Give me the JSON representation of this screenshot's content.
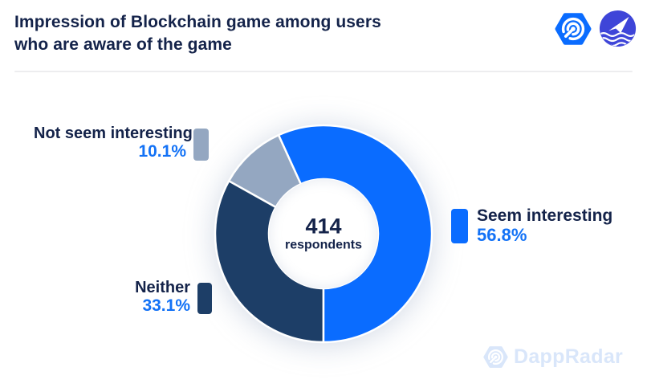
{
  "header": {
    "title_line1": "Impression of Blockchain game among users",
    "title_line2": "who are aware of the game"
  },
  "icons": {
    "header_logo_primary": "dappradar-hexagon-radar",
    "header_logo_secondary": "paper-plane-over-waves",
    "watermark_logo": "dappradar-hexagon-radar"
  },
  "colors": {
    "background": "#FFFFFF",
    "title_navy": "#14234A",
    "chart_blue": "#0A6CFF",
    "chart_navy": "#1D3E67",
    "chart_gray_blue": "#94A7C1",
    "percent_blue": "#1372F6",
    "divider_gray": "#EDEDEF",
    "watermark_blue": "#D9E6FA",
    "logo_indigo": "#3E45D8"
  },
  "chart_data": {
    "type": "pie",
    "subtype": "donut",
    "title": "Impression of Blockchain game among users who are aware of the game",
    "center_value": "414",
    "center_label": "respondents",
    "total_respondents": 414,
    "units": "%",
    "start_angle_deg": 180,
    "direction": "clockwise",
    "outer_radius": 135,
    "inner_radius": 68,
    "segments": [
      {
        "label": "Neither",
        "value": 33.1,
        "color": "#1D3E67"
      },
      {
        "label": "Not seem interesting",
        "value": 10.1,
        "color": "#94A7C1"
      },
      {
        "label": "Seem interesting",
        "value": 56.8,
        "color": "#0A6CFF"
      }
    ],
    "legend_position": "around-chart",
    "grid": false
  },
  "legend": {
    "not_seem": {
      "label": "Not seem interesting",
      "pct": "10.1%"
    },
    "neither": {
      "label": "Neither",
      "pct": "33.1%"
    },
    "seem": {
      "label": "Seem interesting",
      "pct": "56.8%"
    }
  },
  "watermark": {
    "text": "DappRadar"
  }
}
